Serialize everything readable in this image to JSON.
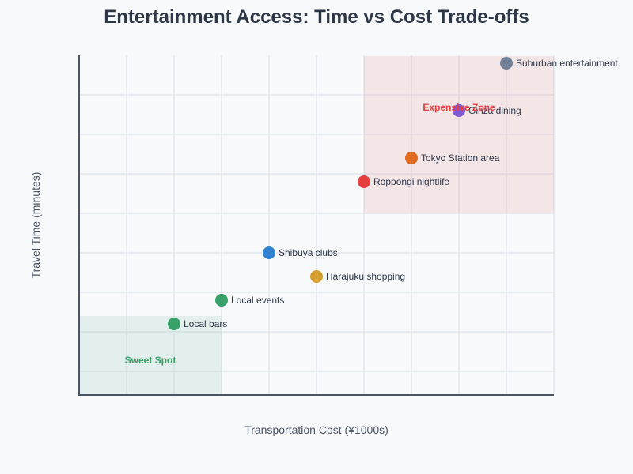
{
  "chart_data": {
    "type": "scatter",
    "title": "Entertainment Access: Time vs Cost Trade-offs",
    "xlabel": "Transportation Cost (¥1000s)",
    "ylabel": "Travel Time (minutes)",
    "xlim": [
      0,
      10
    ],
    "ylim": [
      0,
      143
    ],
    "grid": true,
    "legend": "none",
    "points": [
      {
        "label": "Local bars",
        "x": 2,
        "y": 30,
        "color": "#38a169"
      },
      {
        "label": "Local events",
        "x": 3,
        "y": 40,
        "color": "#38a169"
      },
      {
        "label": "Shibuya clubs",
        "x": 4,
        "y": 60,
        "color": "#3182ce"
      },
      {
        "label": "Harajuku shopping",
        "x": 5,
        "y": 50,
        "color": "#d69e2e"
      },
      {
        "label": "Roppongi nightlife",
        "x": 6,
        "y": 90,
        "color": "#e53e3e"
      },
      {
        "label": "Tokyo Station area",
        "x": 7,
        "y": 100,
        "color": "#dd6b20"
      },
      {
        "label": "Ginza dining",
        "x": 8,
        "y": 120,
        "color": "#805ad5"
      },
      {
        "label": "Suburban entertainment",
        "x": 9,
        "y": 140,
        "color": "#718096"
      }
    ],
    "regions": [
      {
        "label": "Sweet Spot",
        "x": [
          0,
          3
        ],
        "y": [
          0,
          33.3
        ],
        "color": "#38a169"
      },
      {
        "label": "Expensive Zone",
        "x": [
          6,
          10
        ],
        "y": [
          76.7,
          143
        ],
        "color": "#e53e3e"
      }
    ]
  }
}
